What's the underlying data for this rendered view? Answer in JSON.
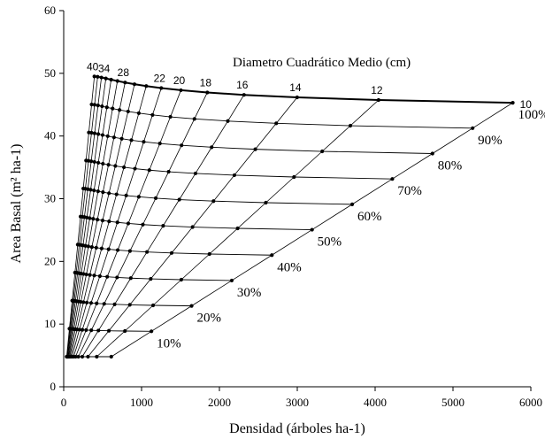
{
  "chart_data": {
    "type": "line",
    "title": "",
    "annotation_title": "Diametro Cuadrático Medio (cm)",
    "xlabel": "Densidad (árboles ha-1)",
    "ylabel": "Area Basal (m² ha-1)",
    "xlim": [
      0,
      6000
    ],
    "ylim": [
      0,
      60
    ],
    "xticks": [
      0,
      1000,
      2000,
      3000,
      4000,
      5000,
      6000
    ],
    "yticks": [
      0,
      10,
      20,
      30,
      40,
      50,
      60
    ],
    "grid": false,
    "legend": "none",
    "dq_labels": [
      "40",
      "34",
      "28",
      "22",
      "20",
      "18",
      "16",
      "14",
      "12",
      "10"
    ],
    "dq_values": [
      40,
      38,
      36,
      34,
      32,
      30,
      28,
      26,
      24,
      22,
      20,
      18,
      16,
      14,
      12,
      10
    ],
    "sdi_levels": [
      10,
      20,
      30,
      40,
      50,
      60,
      70,
      80,
      90,
      100
    ],
    "pct_labels": [
      "10%",
      "20%",
      "30%",
      "40%",
      "50%",
      "60%",
      "70%",
      "80%",
      "90%",
      "100%"
    ],
    "top_line": {
      "g": 49.5,
      "g_end": 45.3,
      "n_end": 5770
    },
    "floor_g": 4.8,
    "series_style": {
      "line_color": "#000000",
      "marker_color": "#000000"
    }
  }
}
